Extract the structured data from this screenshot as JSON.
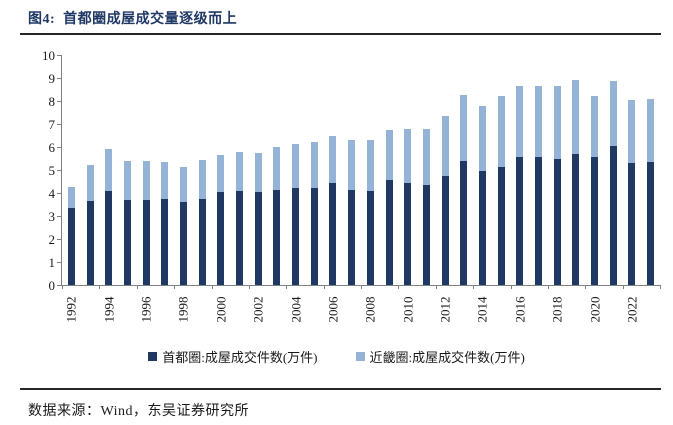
{
  "figure": {
    "title": "图4:  首都圈成屋成交量逐级而上",
    "source": "数据来源：Wind，东吴证券研究所"
  },
  "colors": {
    "title": "#1f3864",
    "bar_dark": "#1f3864",
    "bar_light": "#95b3d7",
    "axis": "#808080",
    "rule": "#262626",
    "text": "#1a1a1a"
  },
  "chart_data": {
    "type": "bar",
    "stacked": true,
    "title": "",
    "xlabel": "",
    "ylabel": "",
    "ylim": [
      0,
      10
    ],
    "y_ticks": [
      0,
      1,
      2,
      3,
      4,
      5,
      6,
      7,
      8,
      9,
      10
    ],
    "grid": false,
    "legend_position": "bottom",
    "categories": [
      "1992",
      "1993",
      "1994",
      "1995",
      "1996",
      "1997",
      "1998",
      "1999",
      "2000",
      "2001",
      "2002",
      "2003",
      "2004",
      "2005",
      "2006",
      "2007",
      "2008",
      "2009",
      "2010",
      "2011",
      "2012",
      "2013",
      "2014",
      "2015",
      "2016",
      "2017",
      "2018",
      "2019",
      "2020",
      "2021",
      "2022",
      "2023"
    ],
    "x_tick_labels": [
      "1992",
      "1994",
      "1996",
      "1998",
      "2000",
      "2002",
      "2004",
      "2006",
      "2008",
      "2010",
      "2012",
      "2014",
      "2016",
      "2018",
      "2020",
      "2022"
    ],
    "series": [
      {
        "name": "首都圈:成屋成交件数(万件)",
        "color": "#1f3864",
        "values": [
          3.35,
          3.65,
          4.1,
          3.7,
          3.7,
          3.75,
          3.6,
          3.75,
          4.05,
          4.1,
          4.05,
          4.15,
          4.2,
          4.2,
          4.45,
          4.15,
          4.1,
          4.55,
          4.45,
          4.35,
          4.75,
          5.4,
          4.95,
          5.15,
          5.55,
          5.55,
          5.5,
          5.7,
          5.55,
          6.05,
          5.3,
          5.35
        ]
      },
      {
        "name": "近畿圈:成屋成交件数(万件)",
        "color": "#95b3d7",
        "values": [
          0.9,
          1.55,
          1.8,
          1.7,
          1.7,
          1.6,
          1.55,
          1.7,
          1.6,
          1.7,
          1.7,
          1.85,
          1.95,
          2.0,
          2.05,
          2.15,
          2.2,
          2.2,
          2.35,
          2.45,
          2.6,
          2.85,
          2.85,
          3.05,
          3.1,
          3.1,
          3.15,
          3.2,
          2.65,
          2.8,
          2.75,
          2.75
        ]
      }
    ]
  }
}
